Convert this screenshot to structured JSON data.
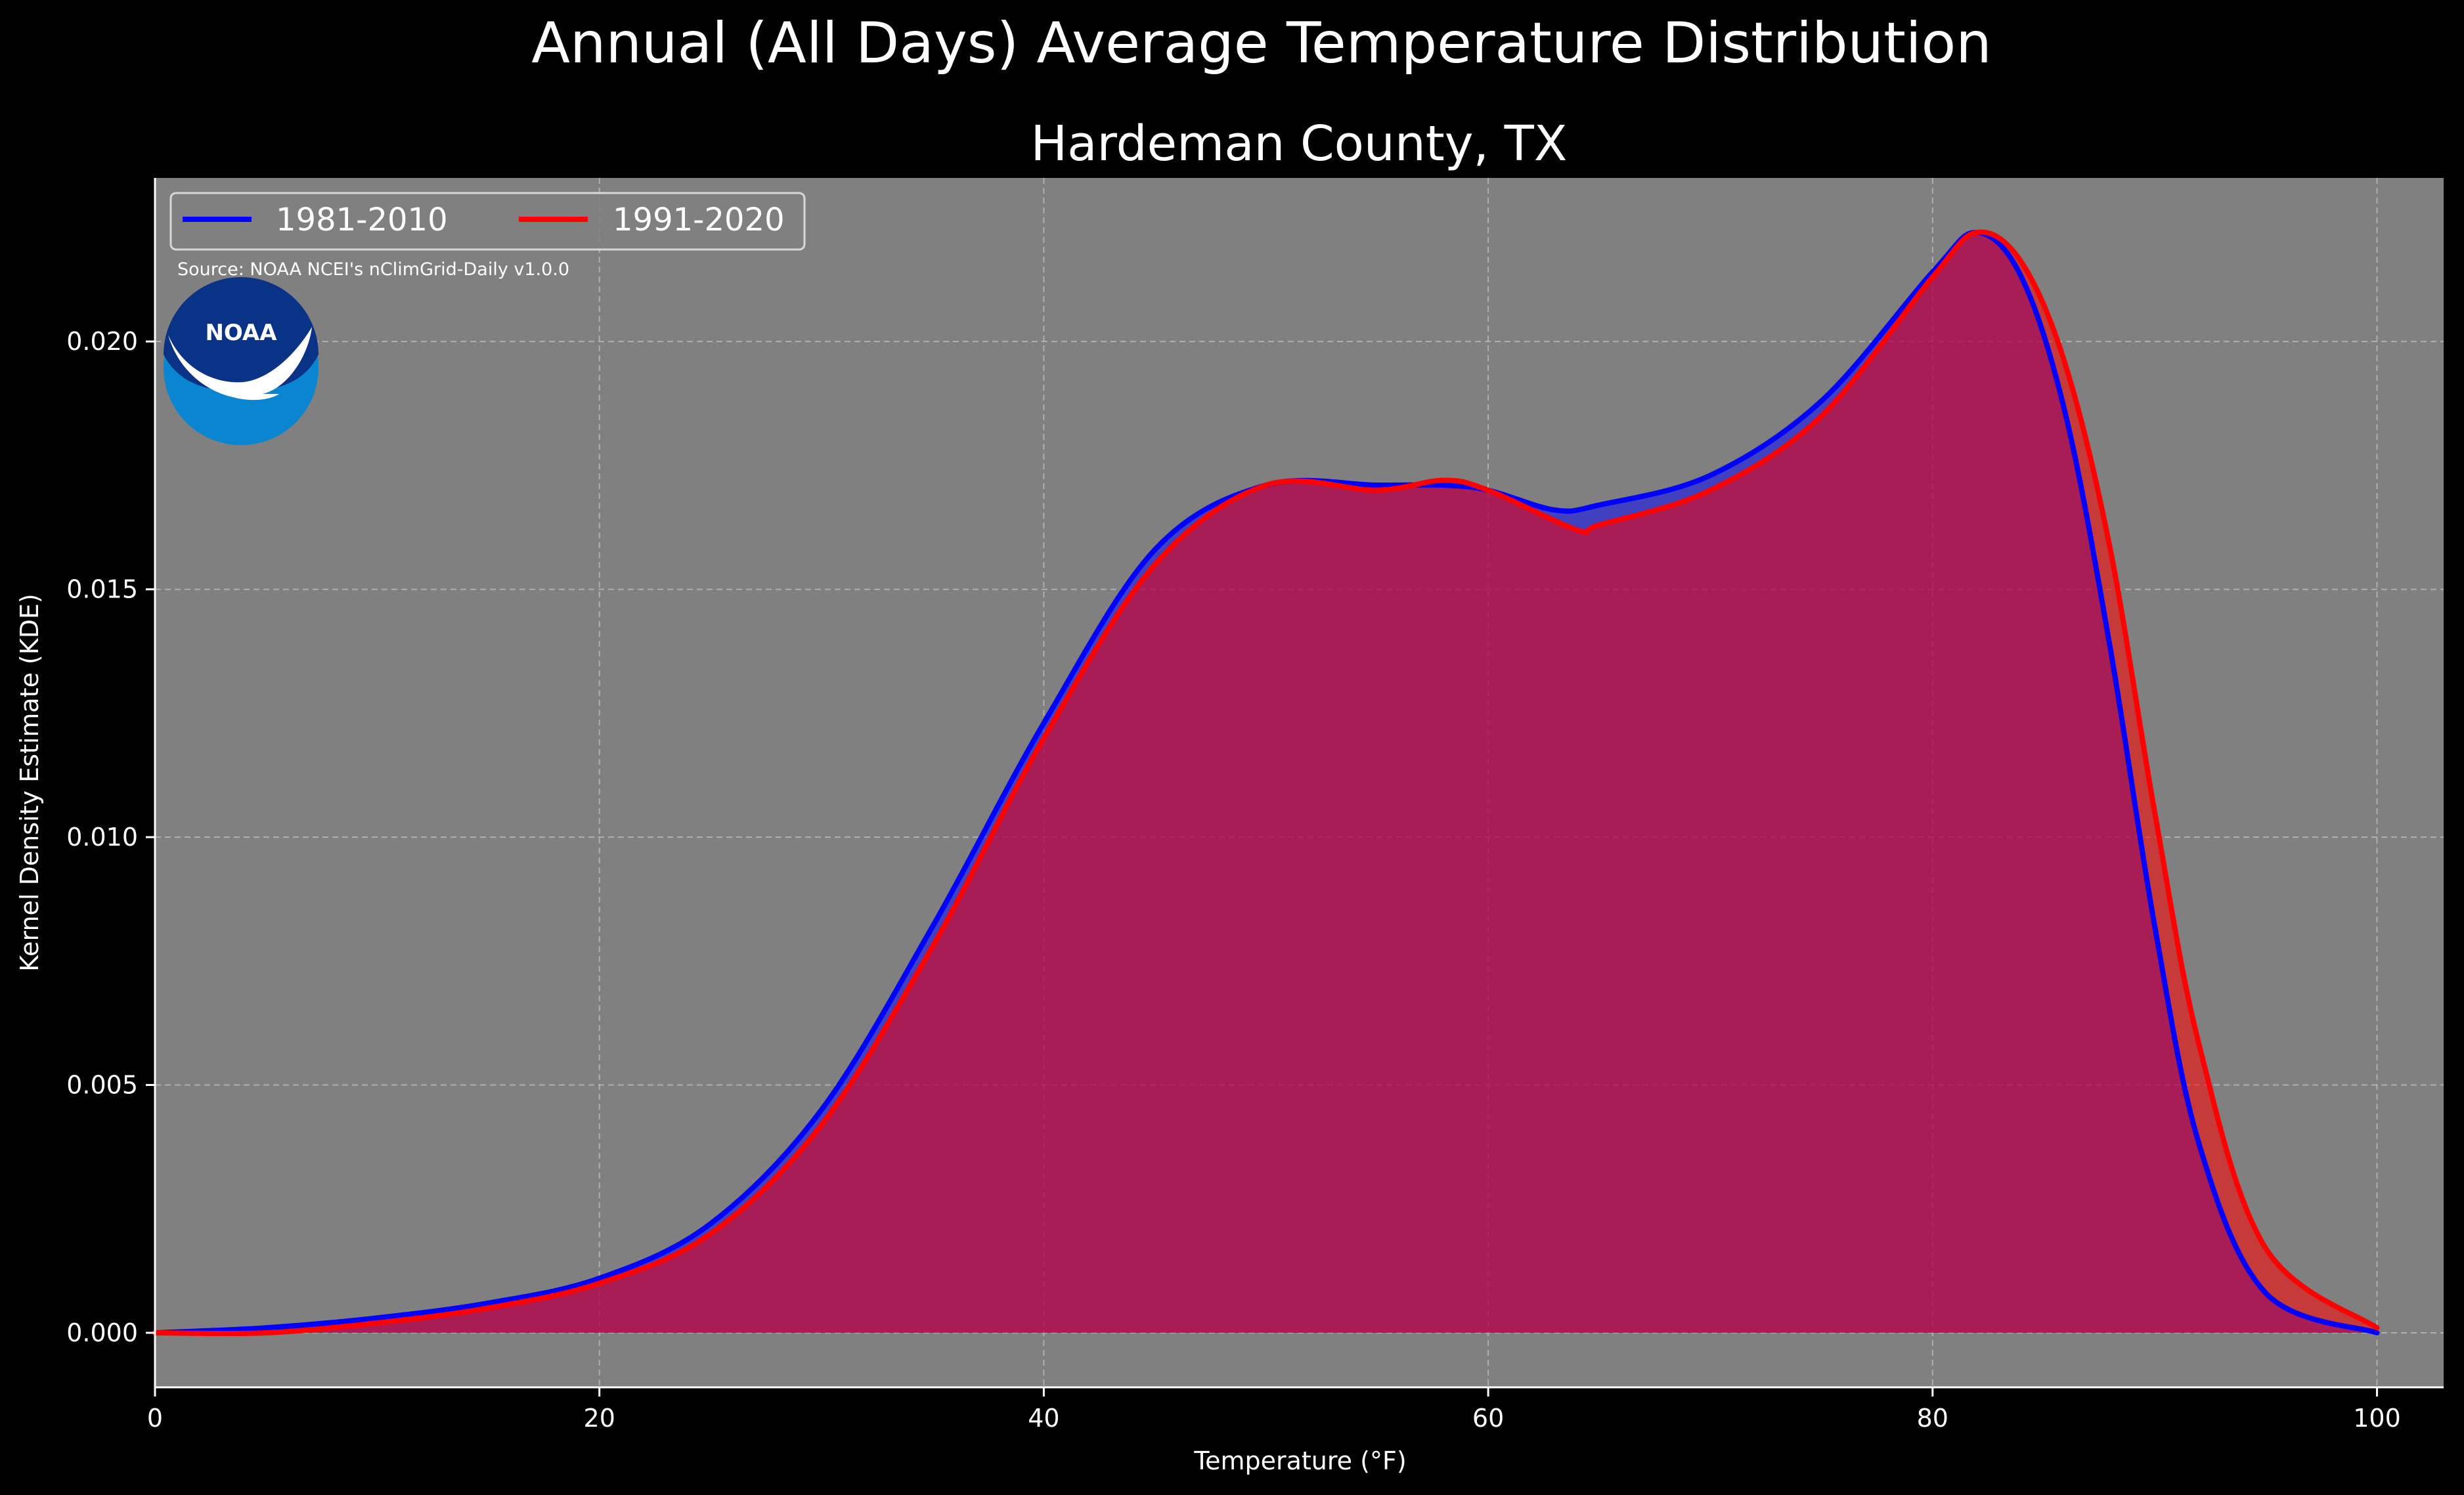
{
  "chart_data": {
    "type": "area",
    "title": "Annual (All Days) Average Temperature Distribution",
    "subtitle": "Hardeman County, TX",
    "xlabel": "Temperature (°F)",
    "ylabel": "Kernel Density Estimate (KDE)",
    "xlim": [
      0,
      103
    ],
    "ylim": [
      -0.0011,
      0.0233
    ],
    "xticks": [
      0,
      20,
      40,
      60,
      80,
      100
    ],
    "xtick_labels": [
      "0",
      "20",
      "40",
      "60",
      "80",
      "100"
    ],
    "yticks": [
      0.0,
      0.005,
      0.01,
      0.015,
      0.02
    ],
    "ytick_labels": [
      "0.000",
      "0.005",
      "0.010",
      "0.015",
      "0.020"
    ],
    "grid": true,
    "legend_position": "top-left",
    "source_note": "Source: NOAA NCEI's nClimGrid-Daily v1.0.0",
    "logo_text": "NOAA",
    "colors": {
      "figure_background": "#000000",
      "plot_background": "#808080",
      "series_1": "#0000ff",
      "series_2": "#ff0000",
      "overlap_fill": "#9e1f5d",
      "text": "#ffffff",
      "logo_outer": "#0a85cf",
      "logo_inner": "#0b3385"
    },
    "series": [
      {
        "name": "1981-2010",
        "color": "#0000ff",
        "x": [
          0,
          5,
          10,
          15,
          20,
          25,
          30,
          35,
          40,
          45,
          50,
          55,
          58,
          60,
          63,
          65,
          70,
          75,
          80,
          82,
          84,
          86,
          88,
          90,
          92,
          95,
          100
        ],
        "y": [
          0.0,
          0.0001,
          0.0003,
          0.0006,
          0.0011,
          0.0022,
          0.0045,
          0.0082,
          0.0123,
          0.0158,
          0.0171,
          0.0171,
          0.0171,
          0.017,
          0.0166,
          0.0167,
          0.0173,
          0.0188,
          0.0214,
          0.0222,
          0.0213,
          0.0185,
          0.0138,
          0.0082,
          0.0038,
          0.0008,
          0.0
        ]
      },
      {
        "name": "1991-2020",
        "color": "#ff0000",
        "x": [
          0,
          5,
          10,
          15,
          20,
          25,
          30,
          35,
          40,
          45,
          50,
          55,
          58,
          60,
          64,
          65,
          70,
          75,
          80,
          82,
          84,
          86,
          88,
          90,
          92,
          95,
          100
        ],
        "y": [
          0.0,
          0.0,
          0.0002,
          0.0005,
          0.001,
          0.002,
          0.0042,
          0.0078,
          0.012,
          0.0155,
          0.0171,
          0.017,
          0.0172,
          0.017,
          0.0162,
          0.0163,
          0.017,
          0.0185,
          0.0213,
          0.0222,
          0.0216,
          0.0195,
          0.0158,
          0.0105,
          0.0058,
          0.0017,
          0.0001
        ]
      }
    ]
  }
}
